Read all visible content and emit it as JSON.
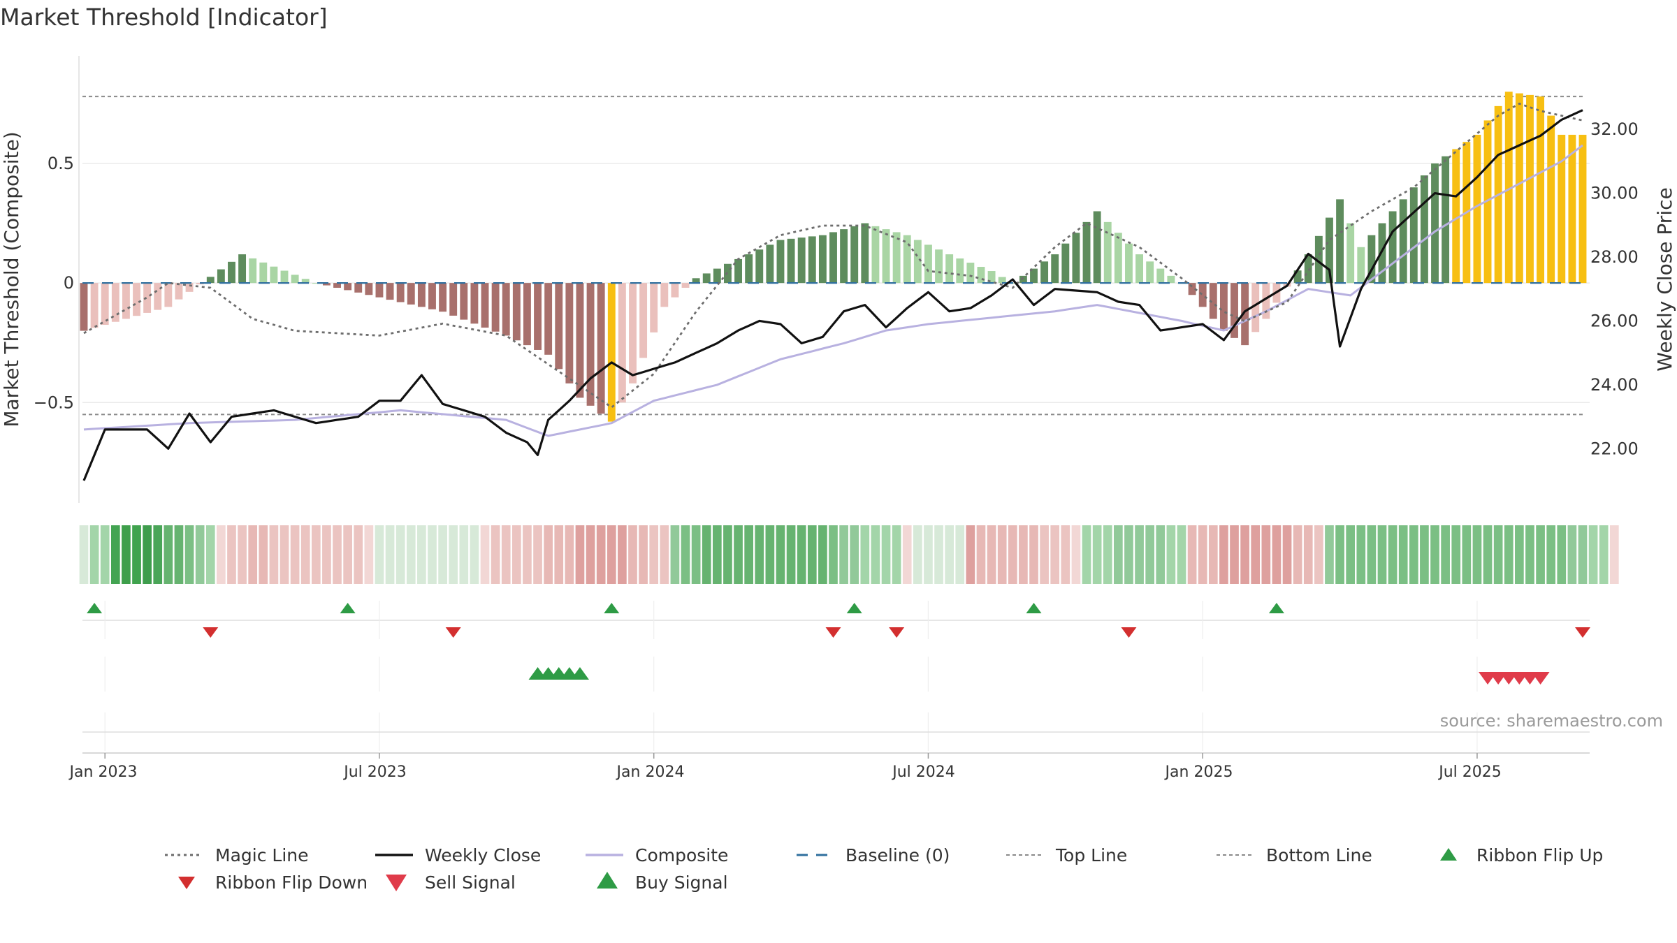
{
  "chart_data": {
    "type": "bar+line",
    "title": "Market Threshold [Indicator]",
    "source": "source: sharemaestro.com",
    "ylabel_left": "Market Threshold (Composite)",
    "ylabel_right": "Weekly Close Price",
    "ylim_left": [
      -0.92,
      0.95
    ],
    "ylim_right": [
      20.3,
      34.3
    ],
    "left_ticks": [
      {
        "v": 0.5,
        "label": "0.5"
      },
      {
        "v": 0,
        "label": "0"
      },
      {
        "v": -0.5,
        "label": "−0.5"
      }
    ],
    "right_ticks": [
      {
        "v": 32,
        "label": "32.00"
      },
      {
        "v": 30,
        "label": "30.00"
      },
      {
        "v": 28,
        "label": "28.00"
      },
      {
        "v": 26,
        "label": "26.00"
      },
      {
        "v": 24,
        "label": "24.00"
      },
      {
        "v": 22,
        "label": "22.00"
      }
    ],
    "x_ticks": [
      {
        "week": 2,
        "label": "Jan 2023"
      },
      {
        "week": 28,
        "label": "Jul 2023"
      },
      {
        "week": 54,
        "label": "Jan 2024"
      },
      {
        "week": 80,
        "label": "Jul 2024"
      },
      {
        "week": 106,
        "label": "Jan 2025"
      },
      {
        "week": 132,
        "label": "Jul 2025"
      }
    ],
    "weeks": 143,
    "top_line": 0.78,
    "bottom_line": -0.55,
    "baseline": 0,
    "composite_keys": [
      [
        0,
        -0.2
      ],
      [
        8,
        -0.1
      ],
      [
        15,
        0.12
      ],
      [
        22,
        0.0
      ],
      [
        28,
        -0.06
      ],
      [
        34,
        -0.12
      ],
      [
        40,
        -0.22
      ],
      [
        44,
        -0.3
      ],
      [
        47,
        -0.48
      ],
      [
        50,
        -0.58
      ],
      [
        52,
        -0.42
      ],
      [
        55,
        -0.1
      ],
      [
        58,
        0.02
      ],
      [
        62,
        0.1
      ],
      [
        66,
        0.18
      ],
      [
        70,
        0.2
      ],
      [
        74,
        0.25
      ],
      [
        78,
        0.2
      ],
      [
        82,
        0.12
      ],
      [
        86,
        0.05
      ],
      [
        88,
        0.0
      ],
      [
        92,
        0.12
      ],
      [
        96,
        0.3
      ],
      [
        100,
        0.12
      ],
      [
        104,
        0.0
      ],
      [
        108,
        -0.2
      ],
      [
        110,
        -0.26
      ],
      [
        112,
        -0.15
      ],
      [
        116,
        0.12
      ],
      [
        119,
        0.35
      ],
      [
        121,
        0.15
      ],
      [
        124,
        0.3
      ],
      [
        128,
        0.5
      ],
      [
        132,
        0.62
      ],
      [
        135,
        0.8
      ],
      [
        138,
        0.78
      ],
      [
        140,
        0.62
      ],
      [
        142,
        0.62
      ]
    ],
    "magic_keys": [
      [
        0,
        -0.21
      ],
      [
        6,
        -0.06
      ],
      [
        8,
        0.0
      ],
      [
        12,
        -0.02
      ],
      [
        16,
        -0.15
      ],
      [
        20,
        -0.2
      ],
      [
        28,
        -0.22
      ],
      [
        34,
        -0.17
      ],
      [
        40,
        -0.22
      ],
      [
        46,
        -0.4
      ],
      [
        50,
        -0.52
      ],
      [
        54,
        -0.38
      ],
      [
        58,
        -0.12
      ],
      [
        62,
        0.1
      ],
      [
        66,
        0.2
      ],
      [
        70,
        0.24
      ],
      [
        74,
        0.24
      ],
      [
        78,
        0.17
      ],
      [
        80,
        0.05
      ],
      [
        84,
        0.03
      ],
      [
        88,
        -0.02
      ],
      [
        92,
        0.15
      ],
      [
        95,
        0.25
      ],
      [
        100,
        0.15
      ],
      [
        104,
        0.02
      ],
      [
        108,
        -0.12
      ],
      [
        110,
        -0.16
      ],
      [
        114,
        -0.08
      ],
      [
        118,
        0.18
      ],
      [
        122,
        0.3
      ],
      [
        126,
        0.4
      ],
      [
        130,
        0.55
      ],
      [
        134,
        0.7
      ],
      [
        136,
        0.75
      ],
      [
        138,
        0.72
      ],
      [
        142,
        0.68
      ]
    ],
    "close_keys": [
      [
        0,
        21.0
      ],
      [
        2,
        22.6
      ],
      [
        6,
        22.6
      ],
      [
        8,
        22.0
      ],
      [
        10,
        23.1
      ],
      [
        12,
        22.2
      ],
      [
        14,
        23.0
      ],
      [
        18,
        23.2
      ],
      [
        22,
        22.8
      ],
      [
        26,
        23.0
      ],
      [
        28,
        23.5
      ],
      [
        30,
        23.5
      ],
      [
        32,
        24.3
      ],
      [
        34,
        23.4
      ],
      [
        36,
        23.2
      ],
      [
        38,
        23.0
      ],
      [
        40,
        22.5
      ],
      [
        42,
        22.2
      ],
      [
        43,
        21.8
      ],
      [
        44,
        22.9
      ],
      [
        46,
        23.5
      ],
      [
        48,
        24.2
      ],
      [
        50,
        24.7
      ],
      [
        52,
        24.3
      ],
      [
        54,
        24.5
      ],
      [
        56,
        24.7
      ],
      [
        58,
        25.0
      ],
      [
        60,
        25.3
      ],
      [
        62,
        25.7
      ],
      [
        64,
        26.0
      ],
      [
        66,
        25.9
      ],
      [
        68,
        25.3
      ],
      [
        70,
        25.5
      ],
      [
        72,
        26.3
      ],
      [
        74,
        26.5
      ],
      [
        76,
        25.8
      ],
      [
        78,
        26.4
      ],
      [
        80,
        26.9
      ],
      [
        82,
        26.3
      ],
      [
        84,
        26.4
      ],
      [
        86,
        26.8
      ],
      [
        88,
        27.3
      ],
      [
        90,
        26.5
      ],
      [
        92,
        27.0
      ],
      [
        96,
        26.9
      ],
      [
        98,
        26.6
      ],
      [
        100,
        26.5
      ],
      [
        102,
        25.7
      ],
      [
        104,
        25.8
      ],
      [
        106,
        25.9
      ],
      [
        108,
        25.4
      ],
      [
        110,
        26.3
      ],
      [
        112,
        26.7
      ],
      [
        114,
        27.1
      ],
      [
        116,
        28.1
      ],
      [
        118,
        27.6
      ],
      [
        119,
        25.2
      ],
      [
        121,
        27.0
      ],
      [
        124,
        28.8
      ],
      [
        126,
        29.4
      ],
      [
        128,
        30.0
      ],
      [
        130,
        29.9
      ],
      [
        132,
        30.5
      ],
      [
        134,
        31.2
      ],
      [
        136,
        31.5
      ],
      [
        138,
        31.8
      ],
      [
        140,
        32.3
      ],
      [
        142,
        32.6
      ]
    ],
    "trend_keys": [
      [
        0,
        22.6
      ],
      [
        10,
        22.8
      ],
      [
        20,
        22.9
      ],
      [
        30,
        23.2
      ],
      [
        40,
        22.9
      ],
      [
        44,
        22.4
      ],
      [
        50,
        22.8
      ],
      [
        54,
        23.5
      ],
      [
        60,
        24.0
      ],
      [
        66,
        24.8
      ],
      [
        72,
        25.3
      ],
      [
        76,
        25.7
      ],
      [
        80,
        25.9
      ],
      [
        86,
        26.1
      ],
      [
        92,
        26.3
      ],
      [
        96,
        26.5
      ],
      [
        104,
        26.0
      ],
      [
        108,
        25.7
      ],
      [
        112,
        26.3
      ],
      [
        116,
        27.0
      ],
      [
        120,
        26.8
      ],
      [
        124,
        27.8
      ],
      [
        128,
        28.8
      ],
      [
        132,
        29.6
      ],
      [
        136,
        30.3
      ],
      [
        140,
        31.0
      ],
      [
        142,
        31.5
      ]
    ],
    "ribbon_colors": [
      "#d7e9d8",
      "#a3d5a9",
      "#a3d5a9",
      "#43a452",
      "#3e9f4b",
      "#40a34e",
      "#3f9d4d",
      "#4aa558",
      "#66b370",
      "#66b370",
      "#7bbf84",
      "#91c999",
      "#a3d5a9",
      "#f2d7d5",
      "#ebc4c1",
      "#ebc4c1",
      "#e7b8b5",
      "#e7b8b5",
      "#ebc4c1",
      "#ebc4c1",
      "#ebc4c1",
      "#ebc4c1",
      "#ebc4c1",
      "#ebc4c1",
      "#ebc4c1",
      "#ebc4c1",
      "#ebc4c1",
      "#f2d7d5",
      "#d7e9d8",
      "#d7e9d8",
      "#d7e9d8",
      "#d7e9d8",
      "#d7e9d8",
      "#d7e9d8",
      "#d7e9d8",
      "#d7e9d8",
      "#d7e9d8",
      "#d7e9d8",
      "#f2d7d5",
      "#ebc4c1",
      "#ebc4c1",
      "#ebc4c1",
      "#ebc4c1",
      "#ebc4c1",
      "#e7b8b5",
      "#e7b8b5",
      "#e7b8b5",
      "#dea09e",
      "#dea09e",
      "#dea09e",
      "#dea09e",
      "#dea09e",
      "#e7b8b5",
      "#e7b8b5",
      "#ebc4c1",
      "#ebc4c1",
      "#91c999",
      "#7bbf84",
      "#7bbf84",
      "#66b370",
      "#66b370",
      "#66b370",
      "#66b370",
      "#66b370",
      "#66b370",
      "#66b370",
      "#66b370",
      "#66b370",
      "#66b370",
      "#66b370",
      "#66b370",
      "#7bbf84",
      "#91c999",
      "#91c999",
      "#a3d5a9",
      "#a3d5a9",
      "#a3d5a9",
      "#a3d5a9",
      "#f2d7d5",
      "#d7e9d8",
      "#d7e9d8",
      "#d7e9d8",
      "#d7e9d8",
      "#d7e9d8",
      "#dea09e",
      "#e7b8b5",
      "#e7b8b5",
      "#e7b8b5",
      "#e7b8b5",
      "#e7b8b5",
      "#e7b8b5",
      "#ebc4c1",
      "#ebc4c1",
      "#ebc4c1",
      "#f2d7d5",
      "#a3d5a9",
      "#a3d5a9",
      "#a3d5a9",
      "#91c999",
      "#91c999",
      "#91c999",
      "#91c999",
      "#91c999",
      "#a3d5a9",
      "#a3d5a9",
      "#e7b8b5",
      "#e7b8b5",
      "#e7b8b5",
      "#dea09e",
      "#dea09e",
      "#dea09e",
      "#dea09e",
      "#dea09e",
      "#dea09e",
      "#dea09e",
      "#e7b8b5",
      "#e7b8b5",
      "#ebc4c1",
      "#91c999",
      "#7bbf84",
      "#7bbf84",
      "#7bbf84",
      "#7bbf84",
      "#7bbf84",
      "#7bbf84",
      "#7bbf84",
      "#7bbf84",
      "#7bbf84",
      "#7bbf84",
      "#7bbf84",
      "#7bbf84",
      "#7bbf84",
      "#7bbf84",
      "#7bbf84",
      "#7bbf84",
      "#7bbf84",
      "#7bbf84",
      "#7bbf84",
      "#7bbf84",
      "#7bbf84",
      "#7bbf84",
      "#91c999",
      "#91c999",
      "#a3d5a9",
      "#a3d5a9",
      "#f2d7d5"
    ],
    "ribbon_flip_up_weeks": [
      1,
      25,
      50,
      73,
      90,
      113
    ],
    "ribbon_flip_down_weeks": [
      12,
      35,
      71,
      77,
      99,
      142
    ],
    "sell_signal_weeks": [
      133,
      134,
      135,
      136,
      137,
      138
    ],
    "buy_signal_weeks": [
      43,
      44,
      45,
      46,
      47
    ],
    "legend": [
      "Magic Line",
      "Weekly Close",
      "Composite",
      "Baseline (0)",
      "Top Line",
      "Bottom Line",
      "Ribbon Flip Up",
      "Ribbon Flip Down",
      "Sell Signal",
      "Buy Signal"
    ],
    "colors": {
      "text": "#333333",
      "grid": "#e6e6e6",
      "magic": "#6d6d6d",
      "close": "#111111",
      "composite": "#b8b1e0",
      "baseline": "#2f6f9e",
      "topbottom": "#8a8a8a",
      "flip_up": "#2e9b45",
      "flip_down": "#d32f2f",
      "sell": "#e03b4a",
      "buy": "#2e9b45",
      "bar_pos_strong": "#5e8c5d",
      "bar_pos_weak": "#a9d5a4",
      "bar_neg_strong": "#a8706c",
      "bar_neg_weak": "#eac0bc",
      "bar_extreme": "#f7bf12"
    }
  }
}
